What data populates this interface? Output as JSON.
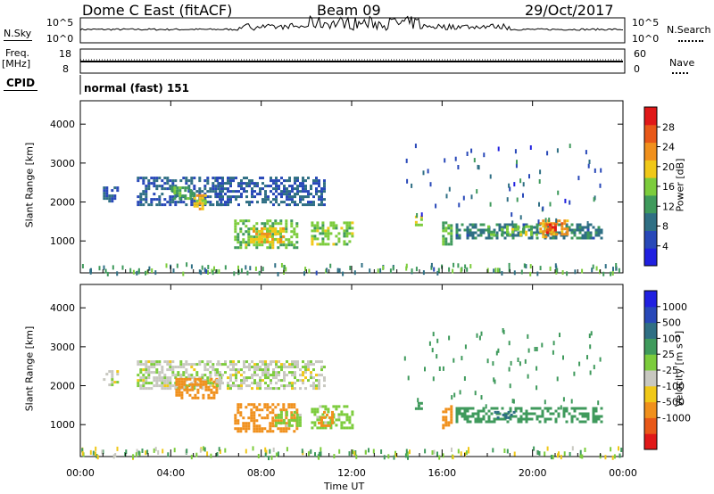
{
  "header": {
    "station": "Dome C East (fitACF)",
    "beam": "Beam 09",
    "date": "29/Oct/2017"
  },
  "top_panels": {
    "nsky_label": "N.Sky",
    "nsky_ticks": [
      "10^5",
      "10^0"
    ],
    "nsearch_label": "N.Search",
    "nsearch_ticks": [
      "10^5",
      "10^0"
    ],
    "freq_label": "Freq.",
    "freq_unit": "[MHz]",
    "freq_ticks": [
      "18",
      "8"
    ],
    "nave_label": "Nave",
    "nave_ticks": [
      "60",
      "0"
    ],
    "cpid_label": "CPID",
    "cpid_value": "normal (fast) 151"
  },
  "colors": {
    "power": [
      "#2020e0",
      "#2848b8",
      "#2f6f84",
      "#3f9a5c",
      "#7ccc3c",
      "#f0c818",
      "#f0901c",
      "#e85818",
      "#e01818"
    ],
    "velocity": [
      "#e01818",
      "#e85818",
      "#f0901c",
      "#f0c818",
      "#c8c8c0",
      "#7ccc3c",
      "#3f9a5c",
      "#2f6f84",
      "#2848b8",
      "#2020e0"
    ]
  },
  "chart_data": [
    {
      "type": "heatmap",
      "name": "power-panel",
      "ylabel": "Slant Range [km]",
      "yticks": [
        "4000",
        "3000",
        "2000",
        "1000"
      ],
      "ytick_values": [
        4000,
        3000,
        2000,
        1000
      ],
      "ylim": [
        180,
        4600
      ],
      "xlim": [
        0,
        24
      ],
      "colorbar": {
        "label": "Power [dB]",
        "ticks": [
          "28",
          "24",
          "20",
          "16",
          "12",
          "8",
          "4"
        ],
        "tick_values": [
          28,
          24,
          20,
          16,
          12,
          8,
          4
        ],
        "range": [
          0,
          32
        ]
      },
      "blobs": [
        {
          "t0": 1.0,
          "t1": 1.7,
          "r0": 2050,
          "r1": 2400,
          "v": 6
        },
        {
          "t0": 2.5,
          "t1": 6.2,
          "r0": 1950,
          "r1": 2650,
          "v": 7
        },
        {
          "t0": 5.0,
          "t1": 5.5,
          "r0": 1850,
          "r1": 2200,
          "v": 20
        },
        {
          "t0": 4.0,
          "t1": 5.0,
          "r0": 2100,
          "r1": 2400,
          "v": 13
        },
        {
          "t0": 6.0,
          "t1": 10.8,
          "r0": 1950,
          "r1": 2650,
          "v": 7
        },
        {
          "t0": 6.8,
          "t1": 9.6,
          "r0": 850,
          "r1": 1550,
          "v": 15
        },
        {
          "t0": 7.5,
          "t1": 9.0,
          "r0": 950,
          "r1": 1350,
          "v": 20
        },
        {
          "t0": 10.2,
          "t1": 12.0,
          "r0": 900,
          "r1": 1500,
          "v": 16
        },
        {
          "t0": 14.8,
          "t1": 15.1,
          "r0": 1400,
          "r1": 1650,
          "v": 17
        },
        {
          "t0": 16.0,
          "t1": 16.4,
          "r0": 950,
          "r1": 1500,
          "v": 14
        },
        {
          "t0": 16.6,
          "t1": 23.0,
          "r0": 1100,
          "r1": 1450,
          "v": 10
        },
        {
          "t0": 18.0,
          "t1": 20.2,
          "r0": 1150,
          "r1": 1400,
          "v": 15
        },
        {
          "t0": 20.3,
          "t1": 21.5,
          "r0": 1100,
          "r1": 1550,
          "v": 22
        },
        {
          "t0": 20.6,
          "t1": 21.0,
          "r0": 1200,
          "r1": 1450,
          "v": 28
        }
      ],
      "scatter": [
        {
          "t0": 0.0,
          "t1": 24.0,
          "r0": 200,
          "r1": 450,
          "v": 12,
          "n": 140
        },
        {
          "t0": 14.3,
          "t1": 23.0,
          "r0": 1500,
          "r1": 3500,
          "v": 8,
          "n": 70
        }
      ]
    },
    {
      "type": "heatmap",
      "name": "velocity-panel",
      "ylabel": "Slant Range [km]",
      "yticks": [
        "4000",
        "3000",
        "2000",
        "1000"
      ],
      "ytick_values": [
        4000,
        3000,
        2000,
        1000
      ],
      "ylim": [
        180,
        4600
      ],
      "xlim": [
        0,
        24
      ],
      "colorbar": {
        "label": "Velocity [m s⁻¹]",
        "ticks": [
          "1000",
          "500",
          "100",
          "25",
          "-25",
          "-100",
          "-500",
          "-1000"
        ],
        "tick_values": [
          1000,
          500,
          100,
          25,
          -25,
          -100,
          -500,
          -1000
        ],
        "range": [
          -1250,
          1250
        ]
      },
      "blobs": [
        {
          "t0": 1.0,
          "t1": 1.7,
          "r0": 2050,
          "r1": 2400,
          "v": 0
        },
        {
          "t0": 2.5,
          "t1": 6.2,
          "r0": 1950,
          "r1": 2650,
          "v": 10
        },
        {
          "t0": 4.2,
          "t1": 6.0,
          "r0": 1700,
          "r1": 2200,
          "v": -200
        },
        {
          "t0": 6.0,
          "t1": 10.8,
          "r0": 1950,
          "r1": 2650,
          "v": 5
        },
        {
          "t0": 6.8,
          "t1": 9.6,
          "r0": 850,
          "r1": 1550,
          "v": -200
        },
        {
          "t0": 8.6,
          "t1": 9.7,
          "r0": 950,
          "r1": 1350,
          "v": 60
        },
        {
          "t0": 10.2,
          "t1": 12.0,
          "r0": 900,
          "r1": 1500,
          "v": 60
        },
        {
          "t0": 10.5,
          "t1": 11.2,
          "r0": 1000,
          "r1": 1350,
          "v": -300
        },
        {
          "t0": 14.8,
          "t1": 15.1,
          "r0": 1400,
          "r1": 1650,
          "v": 150
        },
        {
          "t0": 16.0,
          "t1": 16.4,
          "r0": 950,
          "r1": 1500,
          "v": -200
        },
        {
          "t0": 16.6,
          "t1": 23.0,
          "r0": 1100,
          "r1": 1450,
          "v": 300
        },
        {
          "t0": 18.3,
          "t1": 19.2,
          "r0": 1150,
          "r1": 1350,
          "v": 700
        }
      ],
      "scatter": [
        {
          "t0": 0.0,
          "t1": 24.0,
          "r0": 200,
          "r1": 450,
          "v": 50,
          "n": 140
        },
        {
          "t0": 14.3,
          "t1": 23.0,
          "r0": 1500,
          "r1": 3500,
          "v": 300,
          "n": 70
        }
      ]
    }
  ],
  "xaxis": {
    "ticks": [
      "00:00",
      "04:00",
      "08:00",
      "12:00",
      "16:00",
      "20:00",
      "00:00"
    ],
    "label": "Time UT"
  }
}
